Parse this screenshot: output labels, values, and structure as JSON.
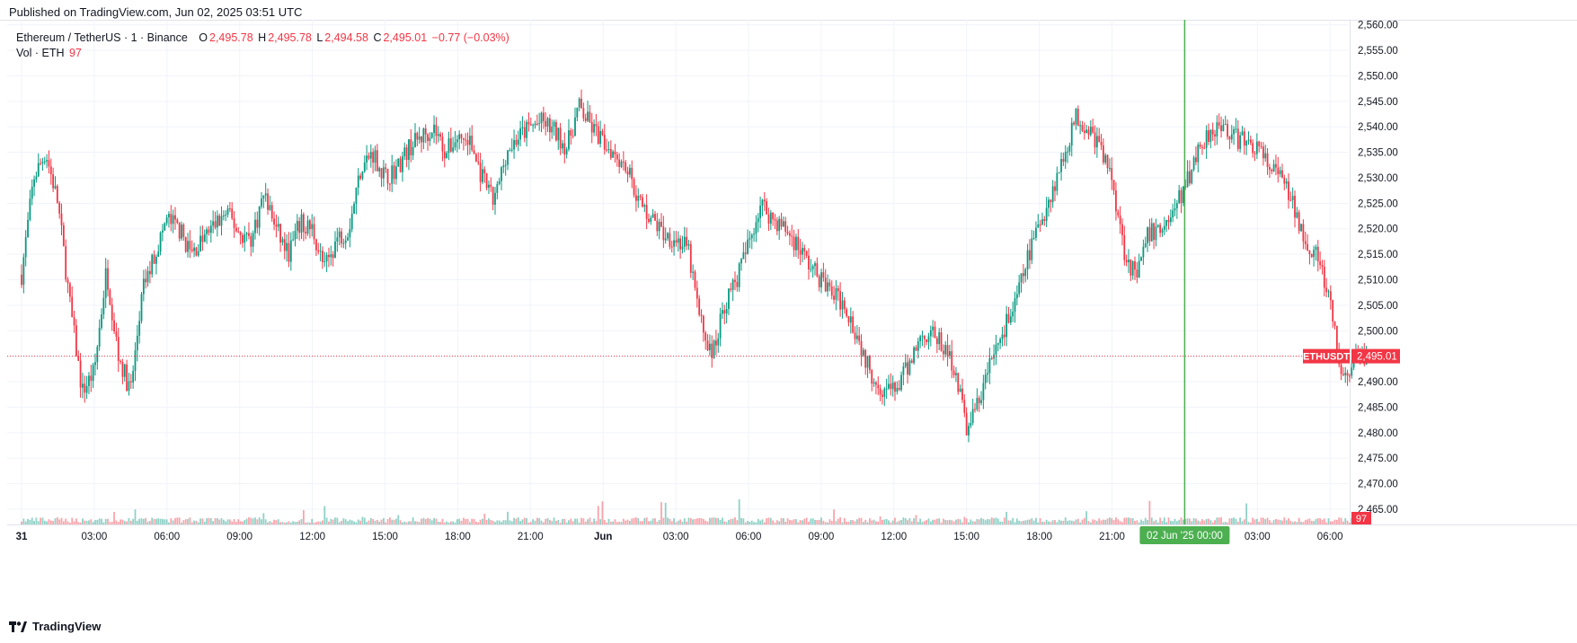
{
  "published": "Published on TradingView.com, Jun 02, 2025 03:51 UTC",
  "footer_brand": "TradingView",
  "legend": {
    "symbol": "Ethereum / TetherUS · 1 · Binance",
    "o_label": "O",
    "o_value": "2,495.78",
    "h_label": "H",
    "h_value": "2,495.78",
    "l_label": "L",
    "l_value": "2,494.58",
    "c_label": "C",
    "c_value": "2,495.01",
    "change": "−0.77 (−0.03%)",
    "vol_label": "Vol · ETH",
    "vol_value": "97"
  },
  "colors": {
    "up": "#089981",
    "down": "#f23645",
    "crosshair": "#4caf50",
    "grid": "#f0f3fa",
    "axis_text": "#131722",
    "last_price": "#f23645"
  },
  "chart_data": {
    "type": "candlestick",
    "symbol": "ETHUSDT",
    "interval": "1",
    "last_price": 2495.01,
    "last_price_label": "2,495.01",
    "last_price_tag": "ETHUSDT",
    "volume_last": "97",
    "ylim": [
      2462,
      2561
    ],
    "y_ticks": [
      "2,560.00",
      "2,555.00",
      "2,550.00",
      "2,545.00",
      "2,540.00",
      "2,535.00",
      "2,530.00",
      "2,525.00",
      "2,520.00",
      "2,515.00",
      "2,510.00",
      "2,505.00",
      "2,500.00",
      "2,495.00",
      "2,490.00",
      "2,485.00",
      "2,480.00",
      "2,475.00",
      "2,470.00",
      "2,465.00"
    ],
    "x_ticks": [
      "31",
      "03:00",
      "06:00",
      "09:00",
      "12:00",
      "15:00",
      "18:00",
      "21:00",
      "Jun",
      "03:00",
      "06:00",
      "09:00",
      "12:00",
      "15:00",
      "18:00",
      "21:00",
      "03:00",
      "06:00"
    ],
    "crosshair_label": "02 Jun '25   00:00",
    "grid": true,
    "price_path_hours": [
      0,
      0.5,
      1,
      1.5,
      2,
      2.5,
      3,
      3.5,
      4,
      4.5,
      5,
      5.5,
      6,
      6.5,
      7,
      7.5,
      8,
      8.5,
      9,
      9.5,
      10,
      10.5,
      11,
      11.5,
      12,
      12.5,
      13,
      13.5,
      14,
      14.5,
      15,
      15.5,
      16,
      16.5,
      17,
      17.5,
      18,
      18.5,
      19,
      19.5,
      20,
      20.5,
      21,
      21.5,
      22,
      22.5,
      23,
      23.5,
      24,
      24.5,
      25,
      25.5,
      26,
      26.5,
      27,
      27.5,
      28,
      28.5,
      29,
      29.5,
      30,
      30.5,
      31,
      31.5,
      32,
      32.5,
      33,
      33.5,
      34,
      34.5,
      35,
      35.5,
      36,
      36.5,
      37,
      37.5,
      38,
      38.5,
      39,
      39.5,
      40,
      40.5,
      41,
      41.5,
      42,
      42.5,
      43,
      43.5,
      44,
      44.5,
      45,
      45.5,
      46,
      46.5,
      47,
      47.5,
      48,
      48.5,
      49,
      49.5,
      50,
      50.5,
      51,
      51.5,
      52,
      52.5,
      53,
      53.5,
      54,
      54.5,
      55,
      55.5
    ],
    "price_path_values": [
      2511,
      2530,
      2535,
      2525,
      2505,
      2488,
      2492,
      2512,
      2495,
      2488,
      2508,
      2515,
      2522,
      2520,
      2515,
      2518,
      2521,
      2523,
      2519,
      2518,
      2527,
      2520,
      2515,
      2521,
      2520,
      2512,
      2518,
      2520,
      2532,
      2535,
      2530,
      2532,
      2536,
      2538,
      2540,
      2535,
      2538,
      2537,
      2530,
      2525,
      2535,
      2538,
      2540,
      2541,
      2539,
      2536,
      2544,
      2540,
      2537,
      2535,
      2532,
      2525,
      2522,
      2519,
      2518,
      2516,
      2502,
      2495,
      2505,
      2510,
      2517,
      2525,
      2522,
      2520,
      2517,
      2513,
      2510,
      2507,
      2505,
      2499,
      2492,
      2489,
      2488,
      2492,
      2498,
      2500,
      2497,
      2493,
      2481,
      2486,
      2494,
      2500,
      2505,
      2514,
      2521,
      2527,
      2534,
      2542,
      2540,
      2536,
      2530,
      2516,
      2510,
      2519,
      2520,
      2523,
      2528,
      2535,
      2539,
      2541,
      2538,
      2537,
      2536,
      2532,
      2530,
      2524,
      2518,
      2514,
      2505,
      2490,
      2494,
      2495
    ],
    "volume_note": "low uniform volume with spikes near 01:15, 09:30, 12:15, 16:30, 03:00"
  }
}
